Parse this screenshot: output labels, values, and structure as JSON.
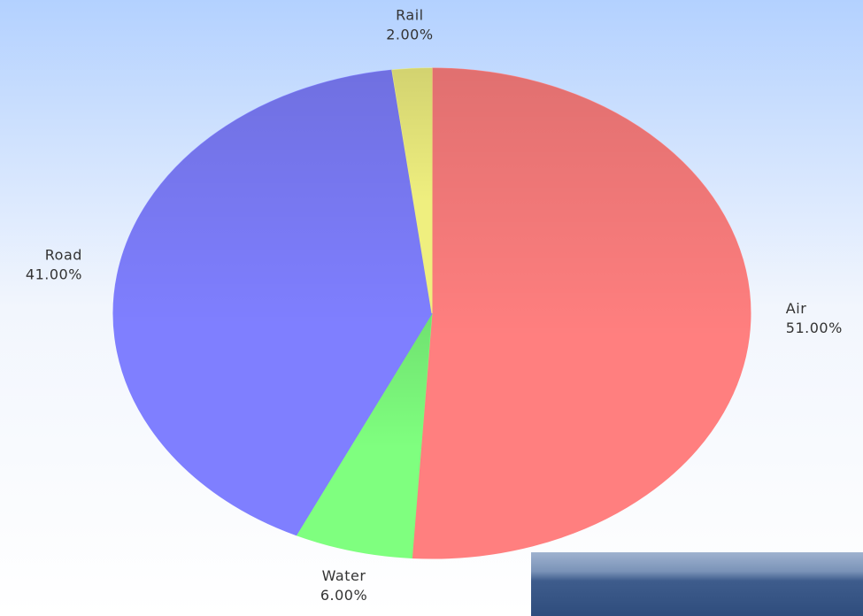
{
  "chart_data": {
    "type": "pie",
    "categories": [
      "Air",
      "Water",
      "Road",
      "Rail"
    ],
    "values": [
      51,
      6,
      41,
      2
    ],
    "value_labels": [
      "51.00%",
      "6.00%",
      "41.00%",
      "2.00%"
    ],
    "colors": [
      "#ff7f7f",
      "#7fff7f",
      "#7f7fff",
      "#efef7f"
    ]
  }
}
